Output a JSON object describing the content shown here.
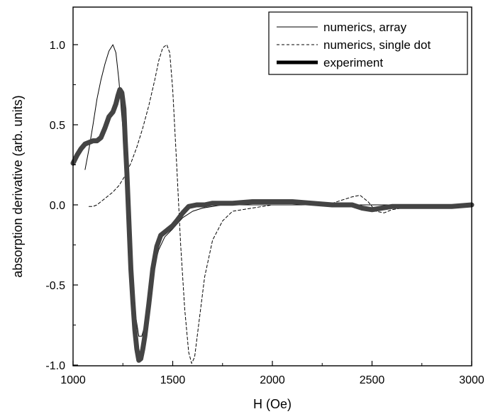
{
  "chart_data": {
    "type": "line",
    "title": "",
    "xlabel": "H (Oe)",
    "ylabel": "absorption derivative (arb. units)",
    "xlim": [
      1000,
      3000
    ],
    "ylim": [
      -1.0,
      1.2
    ],
    "x_ticks": [
      1000,
      1500,
      2000,
      2500,
      3000
    ],
    "x_tick_labels": [
      "1000",
      "1500",
      "2000",
      "2500",
      "3000"
    ],
    "y_ticks": [
      -1.0,
      -0.5,
      0.0,
      0.5,
      1.0
    ],
    "y_tick_labels": [
      "-1.0",
      "-0.5",
      "0.0",
      "0.5",
      "1.0"
    ],
    "grid": false,
    "legend_position": "top-right",
    "colors": {
      "line": "#000000",
      "axis": "#000000",
      "legend_border": "#000000",
      "experiment": "#444444"
    },
    "series": [
      {
        "name": "numerics, array",
        "style": "thin-solid",
        "x": [
          1060,
          1080,
          1100,
          1120,
          1140,
          1160,
          1180,
          1200,
          1215,
          1230,
          1245,
          1260,
          1275,
          1290,
          1300,
          1315,
          1330,
          1345,
          1360,
          1380,
          1400,
          1430,
          1460,
          1500,
          1550,
          1600,
          1650,
          1700,
          1750,
          1800,
          1900,
          2000,
          2200,
          2400,
          2600,
          2800,
          3000
        ],
        "y": [
          0.22,
          0.35,
          0.5,
          0.66,
          0.78,
          0.88,
          0.96,
          1.0,
          0.95,
          0.78,
          0.55,
          0.32,
          0.05,
          -0.3,
          -0.5,
          -0.7,
          -0.82,
          -0.82,
          -0.75,
          -0.6,
          -0.42,
          -0.28,
          -0.2,
          -0.15,
          -0.08,
          -0.04,
          -0.02,
          -0.01,
          0.0,
          0.0,
          0.0,
          0.0,
          0.0,
          0.0,
          0.0,
          0.0,
          0.0
        ]
      },
      {
        "name": "numerics, single dot",
        "style": "thin-dashed",
        "x": [
          1080,
          1100,
          1120,
          1140,
          1160,
          1180,
          1200,
          1230,
          1260,
          1290,
          1320,
          1350,
          1380,
          1410,
          1430,
          1450,
          1470,
          1485,
          1500,
          1520,
          1540,
          1560,
          1580,
          1595,
          1610,
          1630,
          1660,
          1700,
          1750,
          1800,
          1900,
          2000,
          2100,
          2200,
          2300,
          2400,
          2440,
          2480,
          2520,
          2560,
          2600,
          2700,
          2800,
          2900,
          3000
        ],
        "y": [
          -0.01,
          -0.01,
          0.0,
          0.02,
          0.04,
          0.06,
          0.08,
          0.12,
          0.18,
          0.26,
          0.36,
          0.48,
          0.62,
          0.78,
          0.9,
          0.98,
          1.0,
          0.95,
          0.72,
          0.25,
          -0.25,
          -0.65,
          -0.92,
          -0.99,
          -0.95,
          -0.75,
          -0.45,
          -0.22,
          -0.1,
          -0.04,
          -0.02,
          0.0,
          0.0,
          0.0,
          0.01,
          0.05,
          0.06,
          0.02,
          -0.04,
          -0.05,
          -0.03,
          -0.01,
          0.0,
          0.0,
          0.0
        ]
      },
      {
        "name": "experiment",
        "style": "thick-solid",
        "x": [
          1000,
          1020,
          1040,
          1060,
          1080,
          1100,
          1120,
          1140,
          1160,
          1180,
          1200,
          1215,
          1225,
          1235,
          1245,
          1255,
          1262,
          1270,
          1280,
          1290,
          1300,
          1310,
          1320,
          1330,
          1340,
          1350,
          1360,
          1380,
          1400,
          1420,
          1440,
          1460,
          1480,
          1500,
          1520,
          1550,
          1580,
          1620,
          1660,
          1700,
          1750,
          1800,
          1900,
          2000,
          2100,
          2200,
          2300,
          2400,
          2450,
          2500,
          2550,
          2600,
          2700,
          2800,
          2900,
          3000
        ],
        "y": [
          0.26,
          0.31,
          0.35,
          0.38,
          0.39,
          0.4,
          0.4,
          0.42,
          0.48,
          0.55,
          0.58,
          0.63,
          0.68,
          0.72,
          0.7,
          0.6,
          0.4,
          0.2,
          -0.1,
          -0.4,
          -0.6,
          -0.78,
          -0.9,
          -0.97,
          -0.96,
          -0.9,
          -0.82,
          -0.62,
          -0.4,
          -0.26,
          -0.19,
          -0.17,
          -0.15,
          -0.13,
          -0.1,
          -0.05,
          -0.01,
          0.0,
          0.0,
          0.01,
          0.01,
          0.01,
          0.02,
          0.02,
          0.02,
          0.01,
          0.0,
          0.0,
          -0.02,
          -0.03,
          -0.02,
          -0.01,
          -0.01,
          -0.01,
          -0.01,
          0.0
        ]
      }
    ]
  }
}
